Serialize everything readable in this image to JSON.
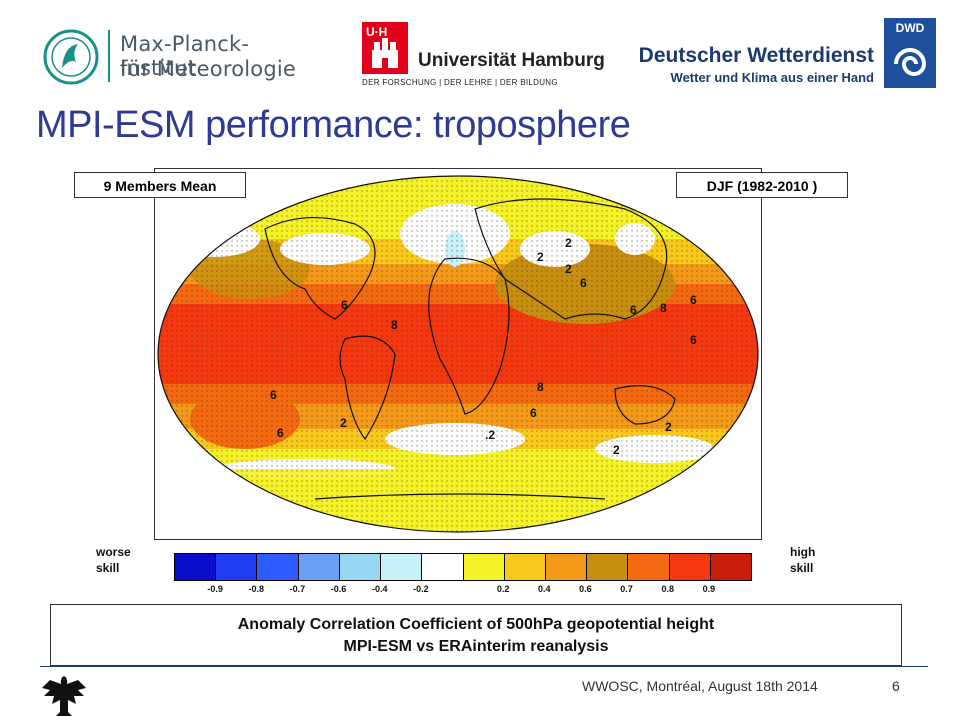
{
  "header": {
    "mpi_line1": "Max-Planck-Institut",
    "mpi_line2": "für Meteorologie",
    "uhh_badge": "U·H",
    "uhh_name": "Universität Hamburg",
    "uhh_tagline": "DER FORSCHUNG | DER LEHRE | DER BILDUNG",
    "dwd_name": "Deutscher Wetterdienst",
    "dwd_tagline": "Wetter und Klima aus einer Hand",
    "dwd_badge": "DWD"
  },
  "title": "MPI-ESM performance: troposphere",
  "map": {
    "label_left": "9 Members Mean",
    "label_right": "DJF (1982-2010 )",
    "contour_labels": [
      "2",
      "2",
      "2",
      "6",
      "6",
      "6",
      "6",
      "8",
      "8",
      "8",
      "6",
      "6",
      "2",
      "6",
      "6",
      "2",
      "2",
      ".2"
    ]
  },
  "colorbar": {
    "left_label_1": "worse",
    "left_label_2": "skill",
    "right_label_1": "high",
    "right_label_2": "skill",
    "colors": [
      "#0a0ec8",
      "#1f3cf0",
      "#2f5cff",
      "#6aa0f5",
      "#98d8f5",
      "#c8f2fa",
      "#ffffff",
      "#f6f228",
      "#f8c81a",
      "#f59a18",
      "#c88e10",
      "#f56a10",
      "#f53810",
      "#c81e0a"
    ],
    "ticks": [
      "-0.9",
      "-0.8",
      "-0.7",
      "-0.6",
      "-0.4",
      "-0.2",
      "0.2",
      "0.4",
      "0.6",
      "0.7",
      "0.8",
      "0.9"
    ]
  },
  "caption": {
    "line1": "Anomaly Correlation Coefficient of 500hPa geopotential height",
    "line2": "MPI-ESM vs ERAinterim reanalysis"
  },
  "footer": {
    "text": "WWOSC, Montréal, August 18th  2014",
    "page": "6"
  }
}
